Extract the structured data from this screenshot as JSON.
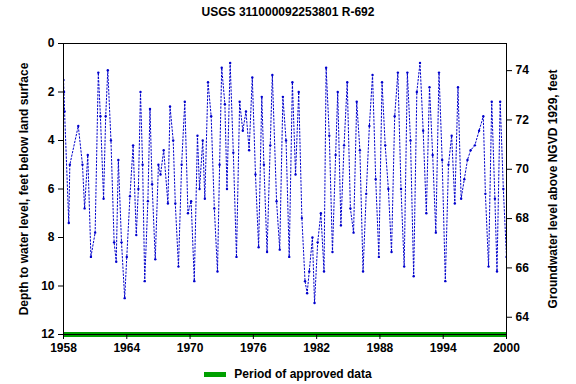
{
  "chart_data": {
    "type": "line",
    "title": "USGS 311000092253801 R-692",
    "y_label": "Depth to water level, feet below land surface",
    "y2_label": "Groundwater level above NGVD 1929, feet",
    "x": [
      1958.0,
      1958.05,
      1958.1,
      1958.5,
      1958.6,
      1959.4,
      1959.8,
      1960.0,
      1960.3,
      1960.6,
      1961.0,
      1961.3,
      1961.5,
      1961.8,
      1962.0,
      1962.2,
      1962.5,
      1962.8,
      1963.0,
      1963.2,
      1963.5,
      1963.8,
      1964.0,
      1964.3,
      1964.6,
      1964.9,
      1965.1,
      1965.3,
      1965.5,
      1965.7,
      1966.0,
      1966.2,
      1966.4,
      1966.7,
      1967.0,
      1967.2,
      1967.5,
      1967.9,
      1968.1,
      1968.4,
      1968.6,
      1968.9,
      1969.2,
      1969.5,
      1969.8,
      1970.1,
      1970.4,
      1970.7,
      1970.9,
      1971.2,
      1971.4,
      1971.7,
      1972.0,
      1972.3,
      1972.6,
      1972.8,
      1973.0,
      1973.3,
      1973.5,
      1973.8,
      1974.1,
      1974.4,
      1974.7,
      1975.0,
      1975.3,
      1975.6,
      1975.9,
      1976.2,
      1976.5,
      1976.8,
      1977.0,
      1977.3,
      1977.6,
      1977.8,
      1978.2,
      1978.5,
      1978.8,
      1979.1,
      1979.4,
      1979.7,
      1980.0,
      1980.3,
      1980.6,
      1980.9,
      1981.1,
      1981.3,
      1981.6,
      1981.8,
      1982.1,
      1982.4,
      1982.7,
      1982.9,
      1983.2,
      1983.5,
      1983.8,
      1984.0,
      1984.3,
      1984.6,
      1984.9,
      1985.2,
      1985.5,
      1985.8,
      1986.1,
      1986.4,
      1986.7,
      1987.0,
      1987.3,
      1987.6,
      1987.9,
      1988.2,
      1988.5,
      1988.8,
      1989.1,
      1989.4,
      1989.7,
      1990.0,
      1990.3,
      1990.6,
      1990.9,
      1991.2,
      1991.5,
      1991.8,
      1992.1,
      1992.4,
      1992.7,
      1993.0,
      1993.3,
      1993.6,
      1993.9,
      1994.2,
      1994.5,
      1994.8,
      1995.1,
      1995.4,
      1995.7,
      1996.0,
      1996.3,
      1996.6,
      1997.0,
      1997.4,
      1997.8,
      1998.0,
      1998.3,
      1998.6,
      1998.9,
      1999.1,
      1999.4,
      1999.7,
      2000.0
    ],
    "series": [
      {
        "name": "Depth to water level",
        "color": "#0000cc",
        "marker": "circle",
        "line_style": "dotted",
        "values": [
          1.5,
          2.0,
          2.8,
          7.4,
          5.0,
          3.4,
          5.0,
          6.8,
          4.6,
          8.8,
          7.8,
          1.2,
          3.0,
          6.4,
          3.0,
          1.1,
          4.0,
          8.2,
          9.0,
          4.8,
          8.2,
          10.5,
          8.8,
          6.3,
          4.2,
          7.9,
          6.0,
          2.0,
          5.0,
          9.8,
          6.5,
          2.7,
          5.8,
          8.9,
          5.0,
          5.4,
          4.4,
          6.6,
          2.6,
          4.0,
          6.6,
          9.2,
          5.0,
          2.4,
          7.0,
          6.5,
          9.8,
          3.8,
          6.0,
          4.0,
          6.4,
          1.6,
          3.0,
          6.8,
          9.4,
          5.0,
          1.0,
          2.5,
          6.0,
          0.8,
          4.5,
          8.8,
          2.4,
          3.6,
          2.8,
          4.4,
          1.4,
          5.4,
          8.4,
          2.2,
          5.0,
          8.6,
          4.2,
          1.3,
          6.5,
          8.5,
          2.2,
          4.0,
          8.8,
          1.6,
          5.4,
          2.0,
          7.2,
          9.8,
          10.3,
          9.4,
          8.0,
          10.7,
          8.2,
          7.0,
          9.4,
          1.0,
          3.8,
          8.6,
          4.6,
          2.0,
          7.5,
          4.2,
          1.6,
          6.8,
          7.8,
          2.4,
          4.4,
          9.4,
          6.2,
          3.4,
          1.3,
          5.6,
          8.8,
          1.6,
          4.2,
          6.0,
          8.6,
          3.0,
          1.2,
          6.0,
          9.2,
          1.2,
          4.0,
          9.6,
          2.0,
          0.8,
          3.6,
          7.0,
          1.8,
          4.6,
          7.8,
          1.2,
          4.8,
          9.8,
          5.0,
          3.8,
          6.6,
          1.8,
          6.4,
          5.6,
          4.8,
          4.4,
          4.2,
          3.6,
          3.0,
          6.2,
          9.2,
          2.4,
          6.4,
          9.4,
          2.4,
          6.0,
          8.8
        ]
      }
    ],
    "approved_period": {
      "label": "Period of approved data",
      "start": 1958,
      "end": 2000,
      "color": "#00a000"
    },
    "xlim": [
      1958,
      2000
    ],
    "xticks": [
      1958,
      1964,
      1970,
      1976,
      1982,
      1988,
      1994,
      2000
    ],
    "ylim": [
      0,
      12
    ],
    "yticks": [
      0,
      2,
      4,
      6,
      8,
      10,
      12
    ],
    "y2lim": [
      75.1,
      63.3
    ],
    "y2ticks": [
      64,
      66,
      68,
      70,
      72,
      74
    ],
    "grid": false
  }
}
